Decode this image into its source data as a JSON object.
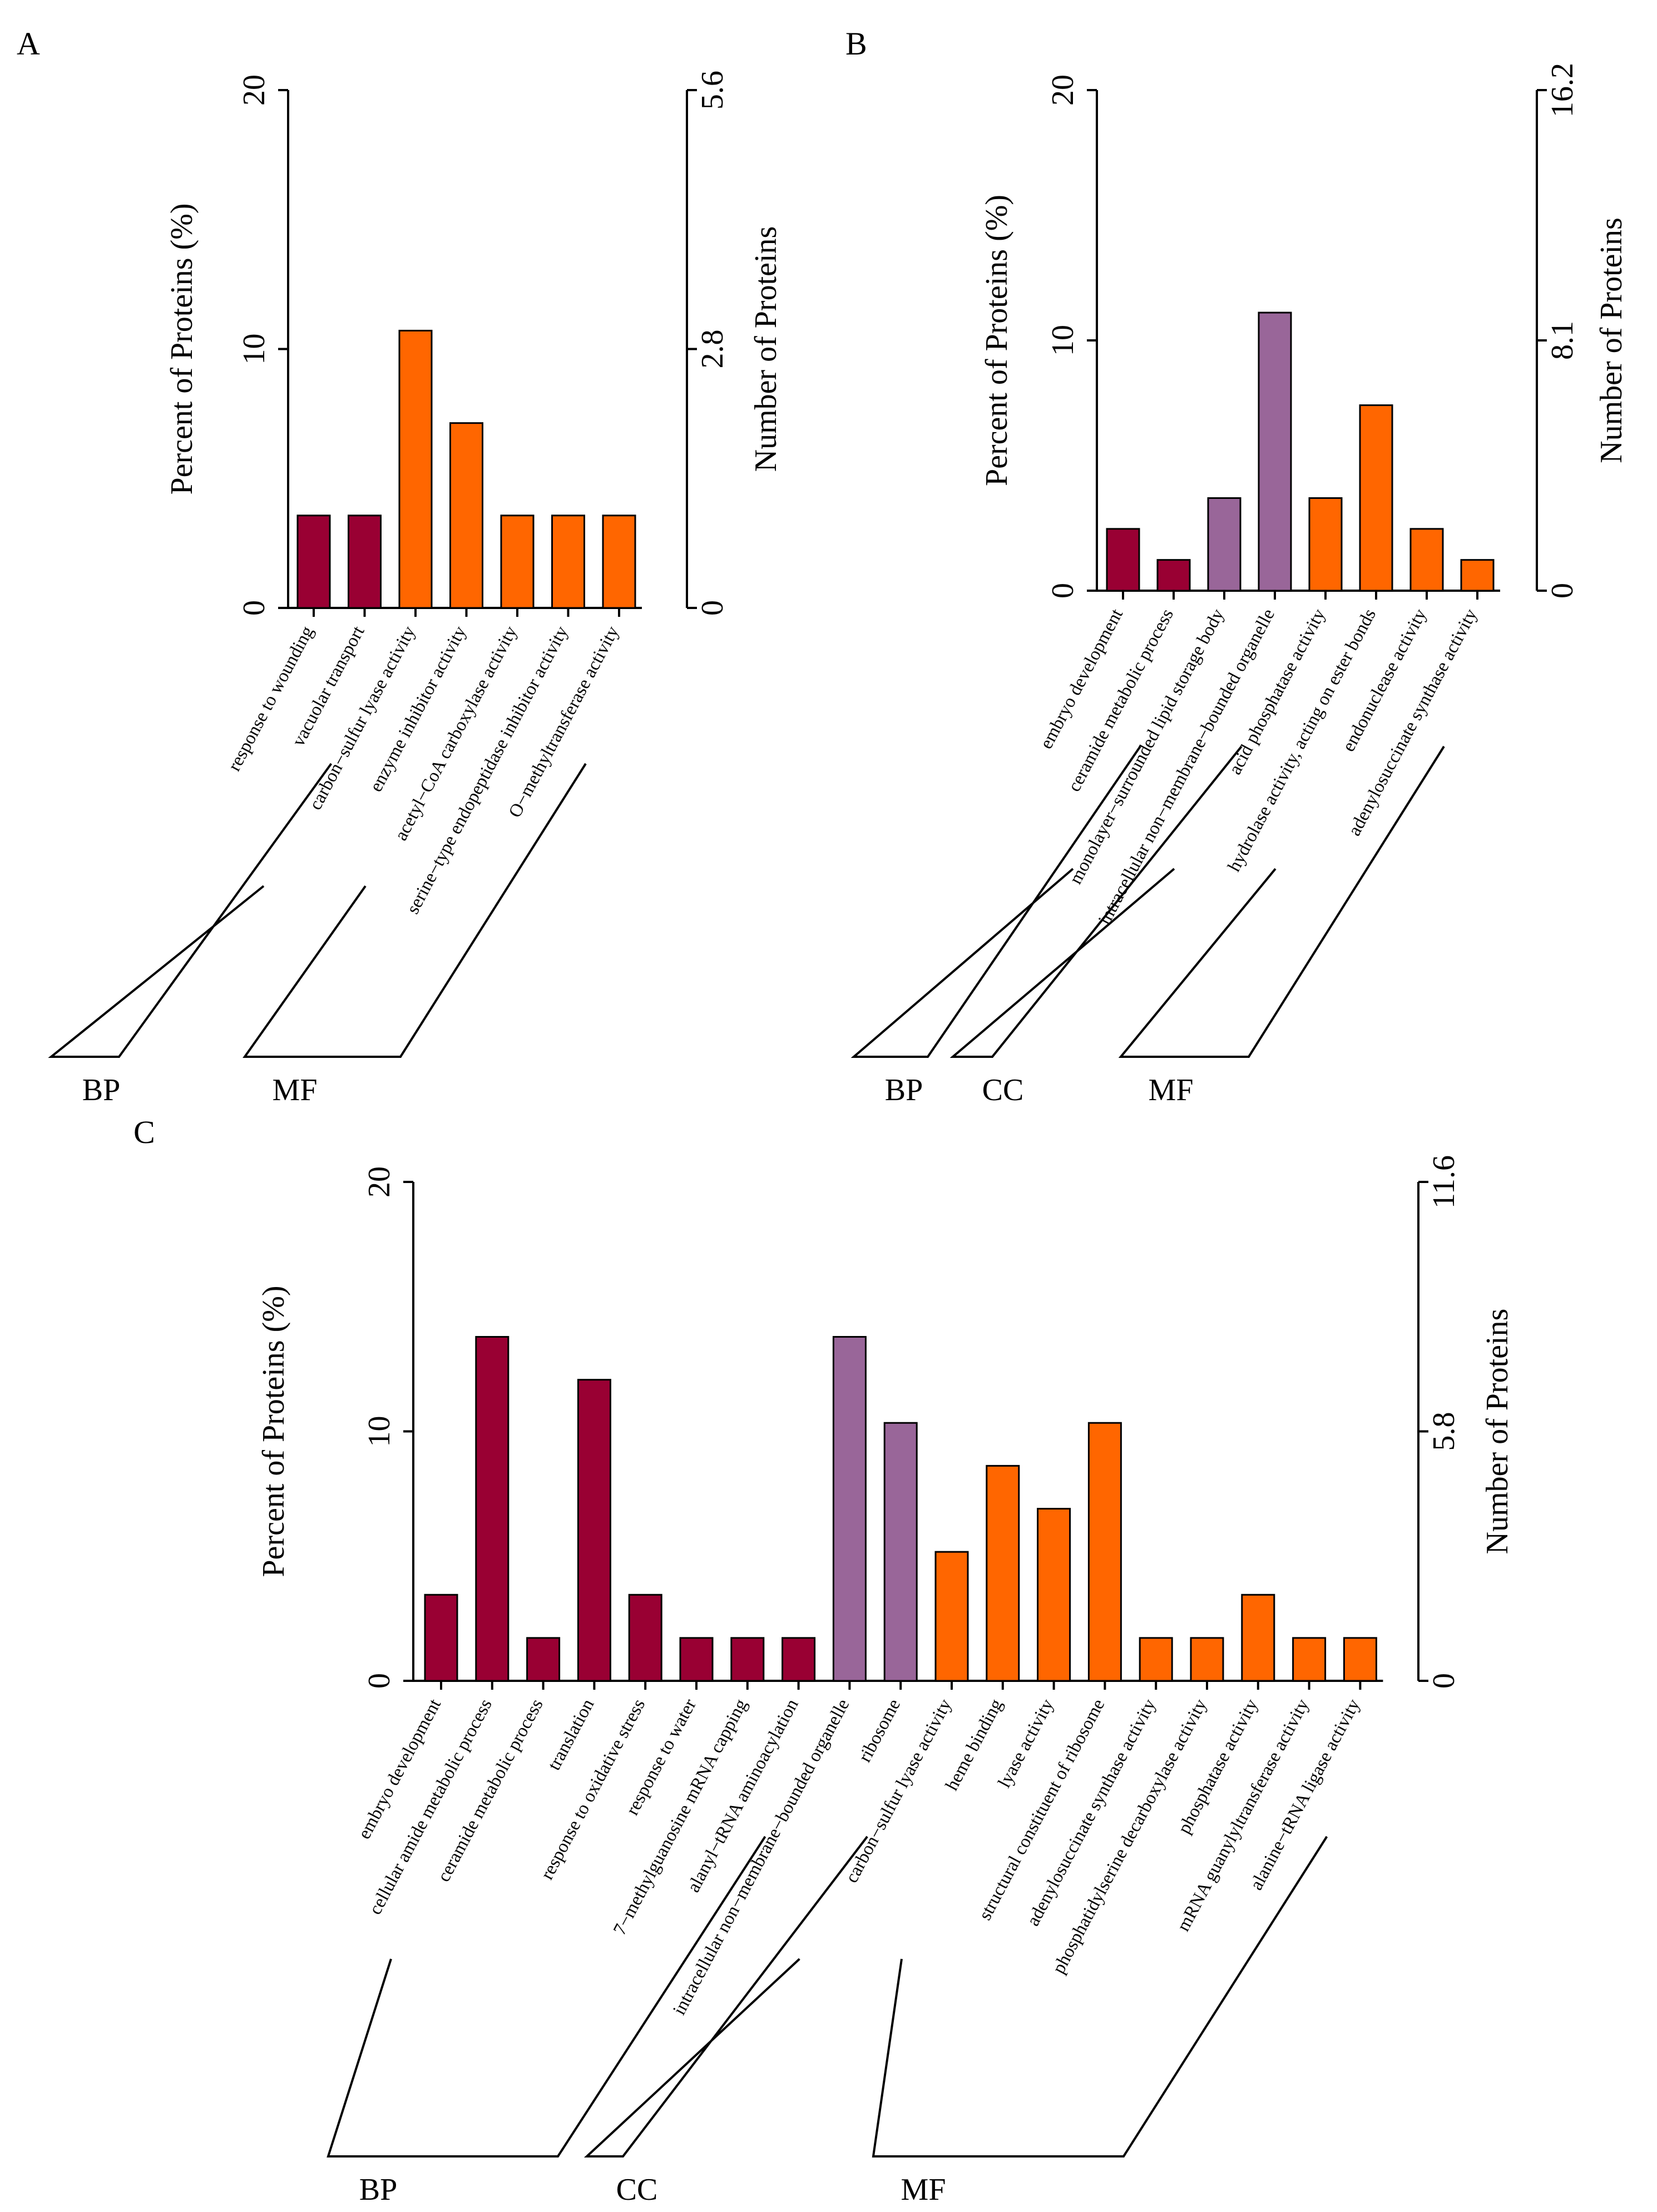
{
  "colors": {
    "BP": "#990033",
    "CC": "#996699",
    "MF": "#ff6600"
  },
  "chart_data": [
    {
      "id": "A",
      "type": "bar",
      "panel_label": "A",
      "ylabel_left": "Percent of Proteins (%)",
      "ylabel_right": "Number of Proteins",
      "ylim_left": [
        0,
        20
      ],
      "left_ticks": [
        "0",
        "10",
        "20"
      ],
      "ylim_right": [
        0,
        5.6
      ],
      "right_ticks": [
        "0",
        "2.8",
        "5.6"
      ],
      "categories": [
        "response to wounding",
        "vacuolar transport",
        "carbon−sulfur lyase activity",
        "enzyme inhibitor activity",
        "acetyl−CoA carboxylase activity",
        "serine−type endopeptidase inhibitor activity",
        "O−methyltransferase activity"
      ],
      "groups": [
        "BP",
        "BP",
        "MF",
        "MF",
        "MF",
        "MF",
        "MF"
      ],
      "values": [
        3.57,
        3.57,
        10.71,
        7.14,
        3.57,
        3.57,
        3.57
      ],
      "group_labels": [
        "BP",
        "MF"
      ]
    },
    {
      "id": "B",
      "type": "bar",
      "panel_label": "B",
      "ylabel_left": "Percent of Proteins (%)",
      "ylabel_right": "Number of Proteins",
      "ylim_left": [
        0,
        20
      ],
      "left_ticks": [
        "0",
        "10",
        "20"
      ],
      "ylim_right": [
        0,
        16.2
      ],
      "right_ticks": [
        "0",
        "8.1",
        "16.2"
      ],
      "categories": [
        "embryo development",
        "ceramide metabolic process",
        "monolayer−surrounded lipid storage body",
        "intracellular non−membrane−bounded organelle",
        "acid phosphatase activity",
        "hydrolase activity, acting on ester bonds",
        "endonuclease activity",
        "adenylosuccinate synthase activity"
      ],
      "groups": [
        "BP",
        "BP",
        "CC",
        "CC",
        "MF",
        "MF",
        "MF",
        "MF"
      ],
      "values": [
        2.47,
        1.23,
        3.7,
        11.11,
        3.7,
        7.41,
        2.47,
        1.23
      ],
      "group_labels": [
        "BP",
        "CC",
        "MF"
      ]
    },
    {
      "id": "C",
      "type": "bar",
      "panel_label": "C",
      "ylabel_left": "Percent of Proteins (%)",
      "ylabel_right": "Number of Proteins",
      "ylim_left": [
        0,
        20
      ],
      "left_ticks": [
        "0",
        "10",
        "20"
      ],
      "ylim_right": [
        0,
        11.6
      ],
      "right_ticks": [
        "0",
        "5.8",
        "11.6"
      ],
      "categories": [
        "embryo development",
        "cellular amide metabolic process",
        "ceramide metabolic process",
        "translation",
        "response to oxidative stress",
        "response to water",
        "7−methylguanosine mRNA capping",
        "alanyl−tRNA aminoacylation",
        "intracellular non−membrane−bounded organelle",
        "ribosome",
        "carbon−sulfur lyase activity",
        "heme binding",
        "lyase activity",
        "structural constituent of ribosome",
        "adenylosuccinate synthase activity",
        "phosphatidylserine decarboxylase activity",
        "phosphatase activity",
        "mRNA guanylyltransferase activity",
        "alanine−tRNA ligase activity"
      ],
      "groups": [
        "BP",
        "BP",
        "BP",
        "BP",
        "BP",
        "BP",
        "BP",
        "BP",
        "CC",
        "CC",
        "MF",
        "MF",
        "MF",
        "MF",
        "MF",
        "MF",
        "MF",
        "MF",
        "MF"
      ],
      "values": [
        3.45,
        13.79,
        1.72,
        12.07,
        3.45,
        1.72,
        1.72,
        1.72,
        13.79,
        10.34,
        5.17,
        8.62,
        6.9,
        10.34,
        1.72,
        1.72,
        3.45,
        1.72,
        1.72
      ],
      "group_labels": [
        "BP",
        "CC",
        "MF"
      ]
    }
  ]
}
